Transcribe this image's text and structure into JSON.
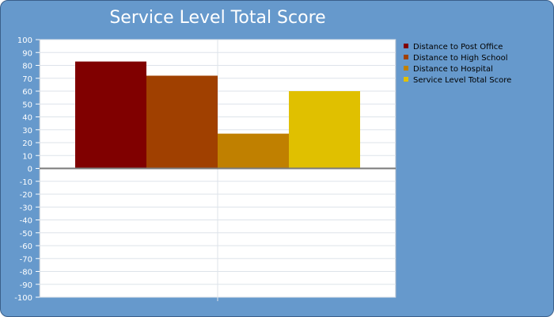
{
  "chart_data": {
    "type": "bar",
    "title": "Service Level Total Score",
    "xlabel": "",
    "ylabel": "",
    "ylim": [
      -100,
      100
    ],
    "ytick_step": 10,
    "grid": true,
    "legend_position": "right",
    "series": [
      {
        "name": "Distance to Post Office",
        "value": 83,
        "color": "#800000"
      },
      {
        "name": "Distance to High School",
        "value": 72,
        "color": "#a04000"
      },
      {
        "name": "Distance to Hospital",
        "value": 27,
        "color": "#c08000"
      },
      {
        "name": "Service Level Total Score",
        "value": 60,
        "color": "#e0c000"
      }
    ]
  }
}
